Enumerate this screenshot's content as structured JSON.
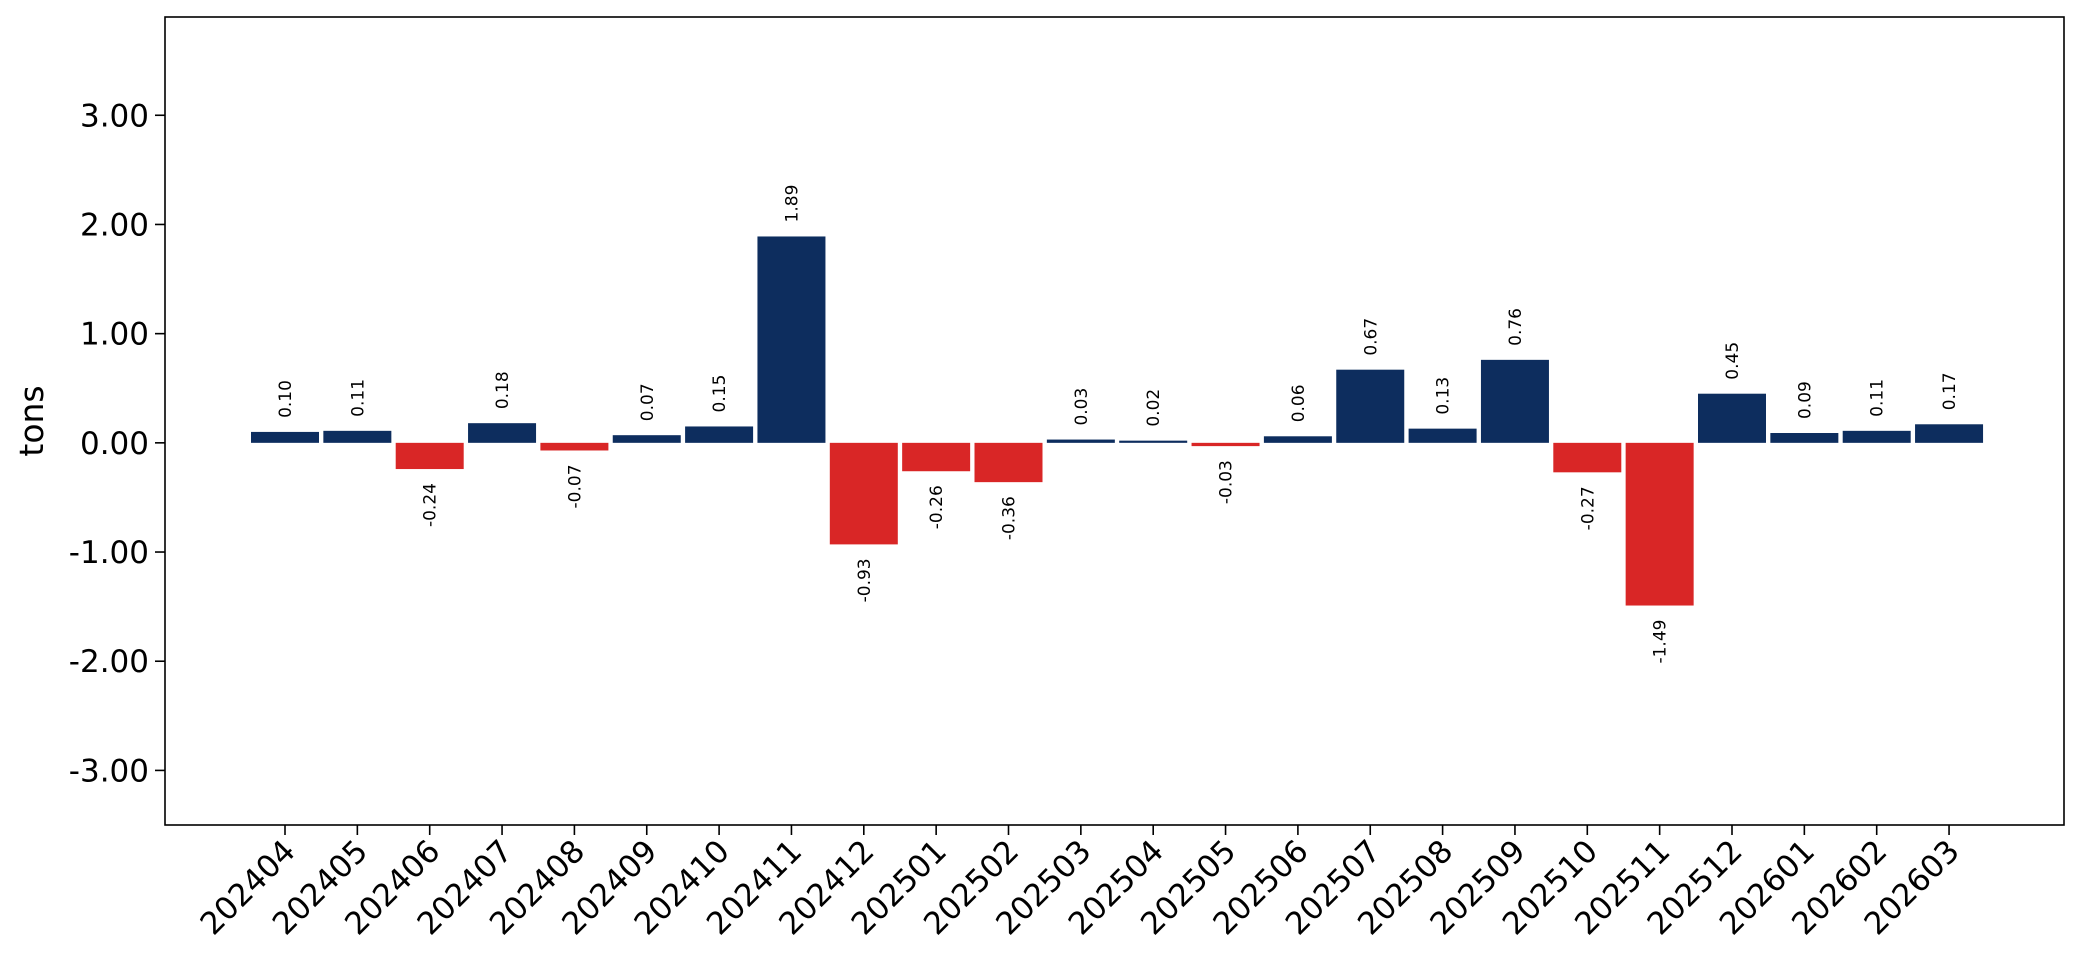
{
  "chart_data": {
    "type": "bar",
    "title": "",
    "xlabel": "",
    "ylabel": "tons",
    "ylim": [
      -3.5,
      3.9
    ],
    "yticks": [
      "3.00",
      "2.00",
      "1.00",
      "0.00",
      "-1.00",
      "-2.00",
      "-3.00"
    ],
    "ytick_values": [
      3,
      2,
      1,
      0,
      -1,
      -2,
      -3
    ],
    "categories": [
      "202404",
      "202405",
      "202406",
      "202407",
      "202408",
      "202409",
      "202410",
      "202411",
      "202412",
      "202501",
      "202502",
      "202503",
      "202504",
      "202505",
      "202506",
      "202507",
      "202508",
      "202509",
      "202510",
      "202511",
      "202512",
      "202601",
      "202602",
      "202603"
    ],
    "values": [
      0.1,
      0.11,
      -0.24,
      0.18,
      -0.07,
      0.07,
      0.15,
      1.89,
      -0.93,
      -0.26,
      -0.36,
      0.03,
      0.02,
      -0.03,
      0.06,
      0.67,
      0.13,
      0.76,
      -0.27,
      -1.49,
      0.45,
      0.09,
      0.11,
      0.17
    ],
    "value_labels": [
      "0.10",
      "0.11",
      "-0.24",
      "0.18",
      "-0.07",
      "0.07",
      "0.15",
      "1.89",
      "-0.93",
      "-0.26",
      "-0.36",
      "0.03",
      "0.02",
      "-0.03",
      "0.06",
      "0.67",
      "0.13",
      "0.76",
      "-0.27",
      "-1.49",
      "0.45",
      "0.09",
      "0.11",
      "0.17"
    ],
    "colors": {
      "positive": "#0d2d5e",
      "negative": "#d92626"
    },
    "grid": false,
    "legend": "none"
  }
}
